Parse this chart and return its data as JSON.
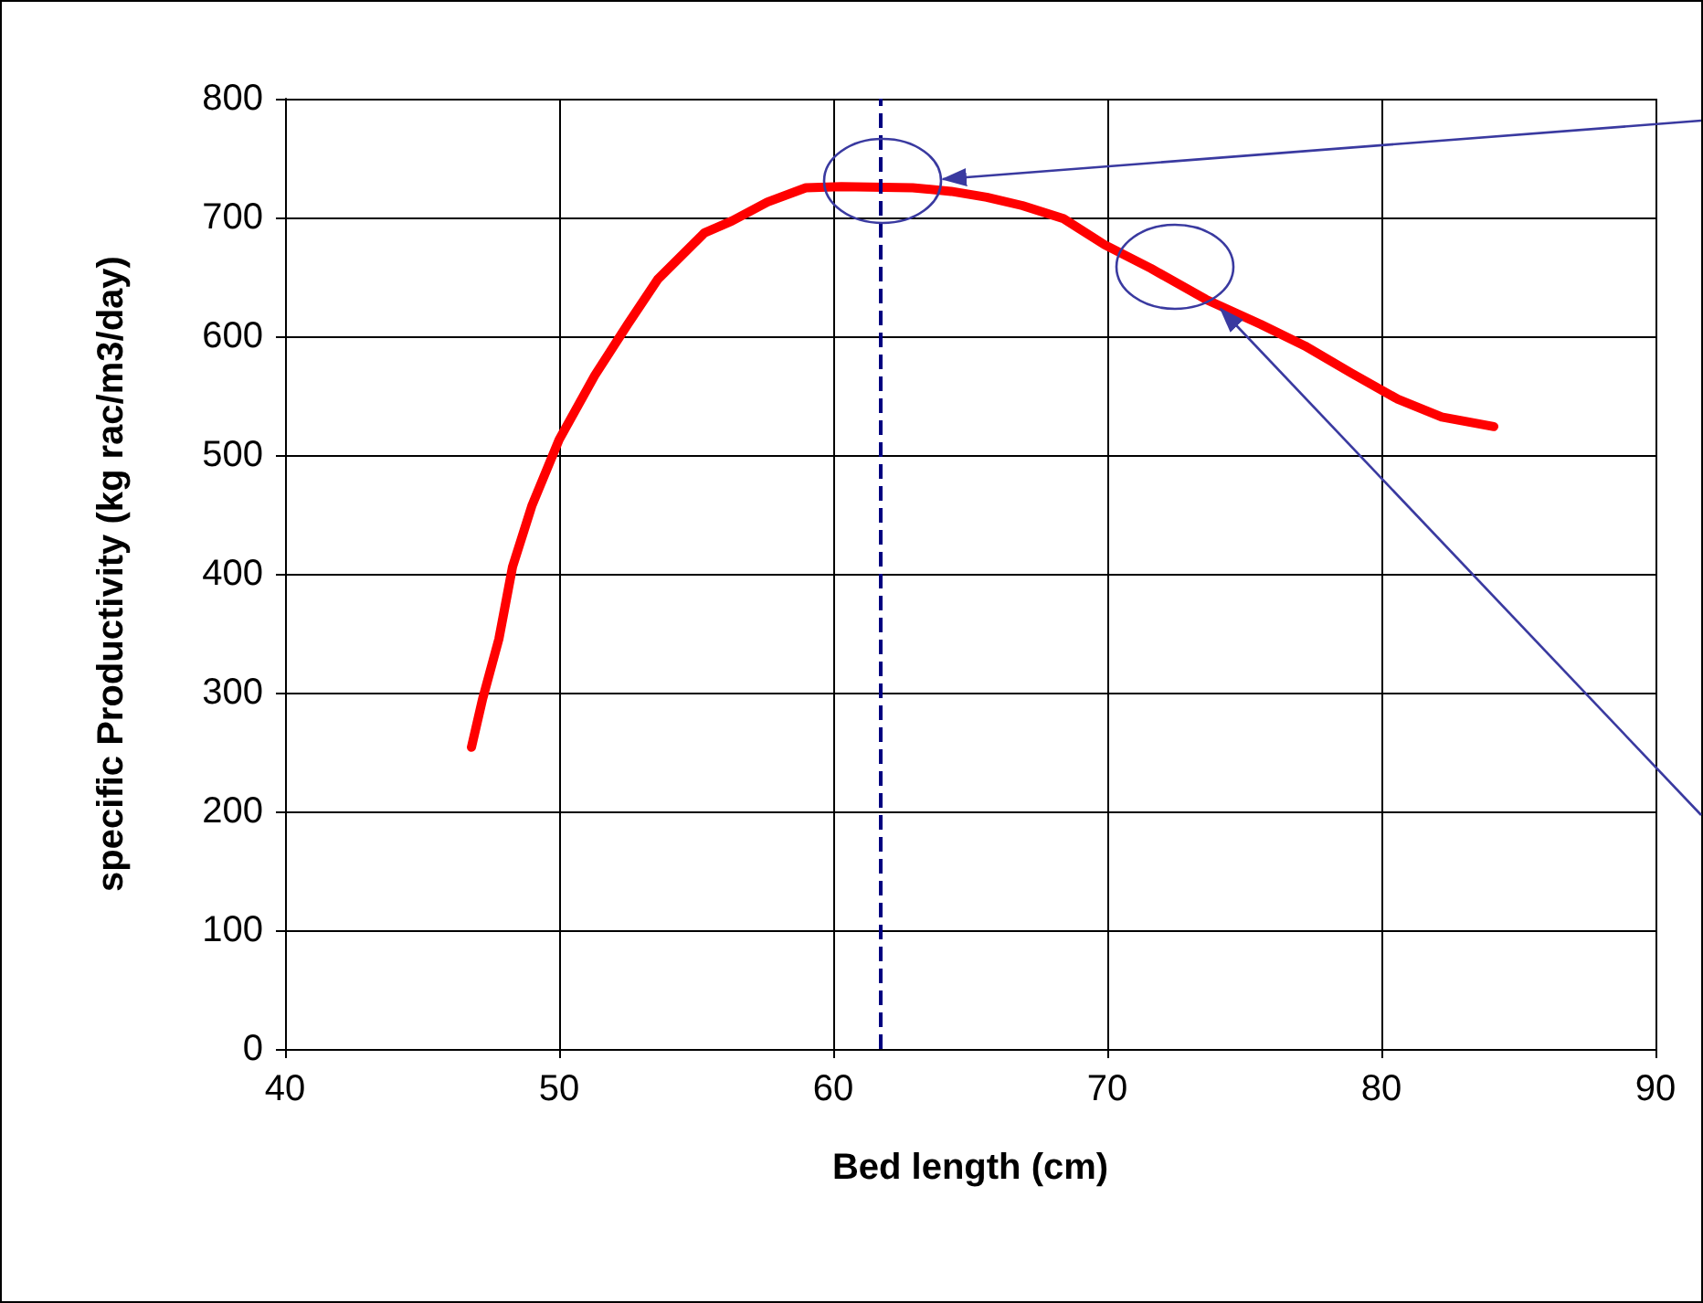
{
  "chart_data": {
    "type": "line",
    "xlabel": "Bed length (cm)",
    "ylabel": "specific Productivity (kg rac/m3/day)",
    "x": [
      46.8,
      47.2,
      47.8,
      48.3,
      49.0,
      50.0,
      51.3,
      52.5,
      53.6,
      55.3,
      56.3,
      57.6,
      59.0,
      60.3,
      62.9,
      64.3,
      65.6,
      66.9,
      68.4,
      69.9,
      71.6,
      73.6,
      75.6,
      77.2,
      78.9,
      80.6,
      82.2,
      84.1
    ],
    "values": [
      254,
      294,
      345,
      406,
      457,
      513,
      567,
      610,
      648,
      687,
      697,
      713,
      725,
      726,
      725,
      722,
      717,
      710,
      699,
      677,
      657,
      631,
      610,
      592,
      569,
      547,
      532,
      524
    ],
    "color": "#ff0000",
    "line_style": "solid",
    "xlim": [
      40,
      90
    ],
    "xticks": [
      40,
      50,
      60,
      70,
      80,
      90
    ],
    "ylim": [
      0,
      800
    ],
    "yticks": [
      0,
      100,
      200,
      300,
      400,
      500,
      600,
      700,
      800
    ],
    "grid": true,
    "ref_lines": [
      {
        "axis": "x",
        "value": 61.7,
        "color": "#000080",
        "line_style": "dashed"
      }
    ]
  }
}
